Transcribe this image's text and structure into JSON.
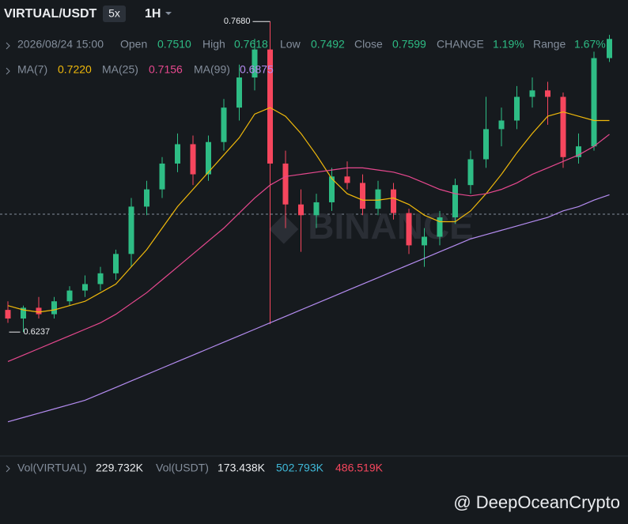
{
  "header": {
    "pair": "VIRTUAL/USDT",
    "leverage": "5x",
    "interval": "1H"
  },
  "info_bar": {
    "time": "2026/08/24 15:00",
    "fields": [
      {
        "label": "Open",
        "value": "0.7510"
      },
      {
        "label": "High",
        "value": "0.7618"
      },
      {
        "label": "Low",
        "value": "0.7492"
      },
      {
        "label": "Close",
        "value": "0.7599"
      },
      {
        "label": "CHANGE",
        "value": "1.19%"
      },
      {
        "label": "Range",
        "value": "1.67%"
      }
    ]
  },
  "ma_legend": [
    {
      "label": "MA(7)",
      "value": "0.7220"
    },
    {
      "label": "MA(25)",
      "value": "0.7156"
    },
    {
      "label": "MA(99)",
      "value": "0.6875"
    }
  ],
  "volume_legend": {
    "fields": [
      {
        "label": "Vol(VIRTUAL)",
        "value": "229.732K"
      },
      {
        "label": "Vol(USDT)",
        "value": "173.438K"
      }
    ],
    "extra": [
      "502.793K",
      "486.519K"
    ]
  },
  "watermark": "@ DeepOceanCrypto",
  "chart_data": {
    "type": "candlestick",
    "ylim": [
      0.565,
      0.778
    ],
    "up_color": "#2ebd85",
    "down_color": "#f6465d",
    "open": [
      0.634,
      0.63,
      0.635,
      0.632,
      0.638,
      0.643,
      0.646,
      0.651,
      0.66,
      0.682,
      0.69,
      0.702,
      0.711,
      0.697,
      0.712,
      0.728,
      0.742,
      0.755,
      0.702,
      0.683,
      0.678,
      0.684,
      0.696,
      0.693,
      0.681,
      0.69,
      0.679,
      0.664,
      0.668,
      0.677,
      0.692,
      0.704,
      0.718,
      0.722,
      0.733,
      0.736,
      0.733,
      0.705,
      0.71,
      0.751
    ],
    "high": [
      0.638,
      0.636,
      0.64,
      0.64,
      0.645,
      0.65,
      0.654,
      0.662,
      0.686,
      0.694,
      0.705,
      0.716,
      0.715,
      0.715,
      0.732,
      0.748,
      0.76,
      0.768,
      0.708,
      0.69,
      0.688,
      0.7,
      0.703,
      0.697,
      0.694,
      0.693,
      0.681,
      0.672,
      0.68,
      0.695,
      0.708,
      0.733,
      0.728,
      0.738,
      0.742,
      0.74,
      0.735,
      0.716,
      0.754,
      0.7618
    ],
    "low": [
      0.628,
      0.6237,
      0.63,
      0.63,
      0.636,
      0.64,
      0.643,
      0.648,
      0.654,
      0.678,
      0.686,
      0.698,
      0.692,
      0.694,
      0.708,
      0.722,
      0.736,
      0.6274,
      0.672,
      0.661,
      0.672,
      0.68,
      0.69,
      0.678,
      0.678,
      0.676,
      0.66,
      0.654,
      0.664,
      0.674,
      0.688,
      0.7,
      0.71,
      0.718,
      0.728,
      0.72,
      0.7,
      0.702,
      0.708,
      0.7492
    ],
    "close": [
      0.63,
      0.635,
      0.632,
      0.638,
      0.643,
      0.646,
      0.651,
      0.66,
      0.682,
      0.69,
      0.702,
      0.711,
      0.697,
      0.712,
      0.728,
      0.742,
      0.755,
      0.702,
      0.683,
      0.678,
      0.684,
      0.696,
      0.693,
      0.681,
      0.69,
      0.679,
      0.664,
      0.668,
      0.677,
      0.692,
      0.704,
      0.718,
      0.722,
      0.733,
      0.736,
      0.733,
      0.705,
      0.71,
      0.751,
      0.7599
    ],
    "series": [
      {
        "name": "MA(7)",
        "color": "#f0b90b",
        "values": [
          0.636,
          0.634,
          0.633,
          0.634,
          0.636,
          0.638,
          0.642,
          0.646,
          0.654,
          0.662,
          0.672,
          0.682,
          0.69,
          0.698,
          0.706,
          0.714,
          0.725,
          0.728,
          0.724,
          0.716,
          0.706,
          0.695,
          0.688,
          0.685,
          0.685,
          0.686,
          0.683,
          0.678,
          0.675,
          0.675,
          0.68,
          0.688,
          0.697,
          0.707,
          0.716,
          0.724,
          0.726,
          0.724,
          0.722,
          0.722
        ]
      },
      {
        "name": "MA(25)",
        "color": "#e6488e",
        "values": [
          0.61,
          0.613,
          0.616,
          0.619,
          0.622,
          0.625,
          0.628,
          0.632,
          0.637,
          0.642,
          0.648,
          0.654,
          0.66,
          0.666,
          0.672,
          0.679,
          0.686,
          0.692,
          0.696,
          0.697,
          0.698,
          0.699,
          0.7,
          0.7,
          0.699,
          0.698,
          0.696,
          0.693,
          0.69,
          0.688,
          0.687,
          0.688,
          0.69,
          0.693,
          0.697,
          0.7,
          0.703,
          0.706,
          0.71,
          0.7156
        ]
      },
      {
        "name": "MA(99)",
        "color": "#b48cf0",
        "values": [
          0.582,
          0.584,
          0.586,
          0.588,
          0.59,
          0.592,
          0.595,
          0.598,
          0.601,
          0.604,
          0.607,
          0.61,
          0.613,
          0.616,
          0.619,
          0.622,
          0.625,
          0.628,
          0.631,
          0.634,
          0.637,
          0.64,
          0.643,
          0.646,
          0.649,
          0.652,
          0.655,
          0.658,
          0.661,
          0.664,
          0.667,
          0.669,
          0.671,
          0.673,
          0.675,
          0.677,
          0.68,
          0.682,
          0.685,
          0.6875
        ]
      }
    ],
    "annotations": [
      {
        "value": 0.768,
        "label": "0.7680"
      },
      {
        "value": 0.6237,
        "label": "0.6237"
      }
    ]
  }
}
